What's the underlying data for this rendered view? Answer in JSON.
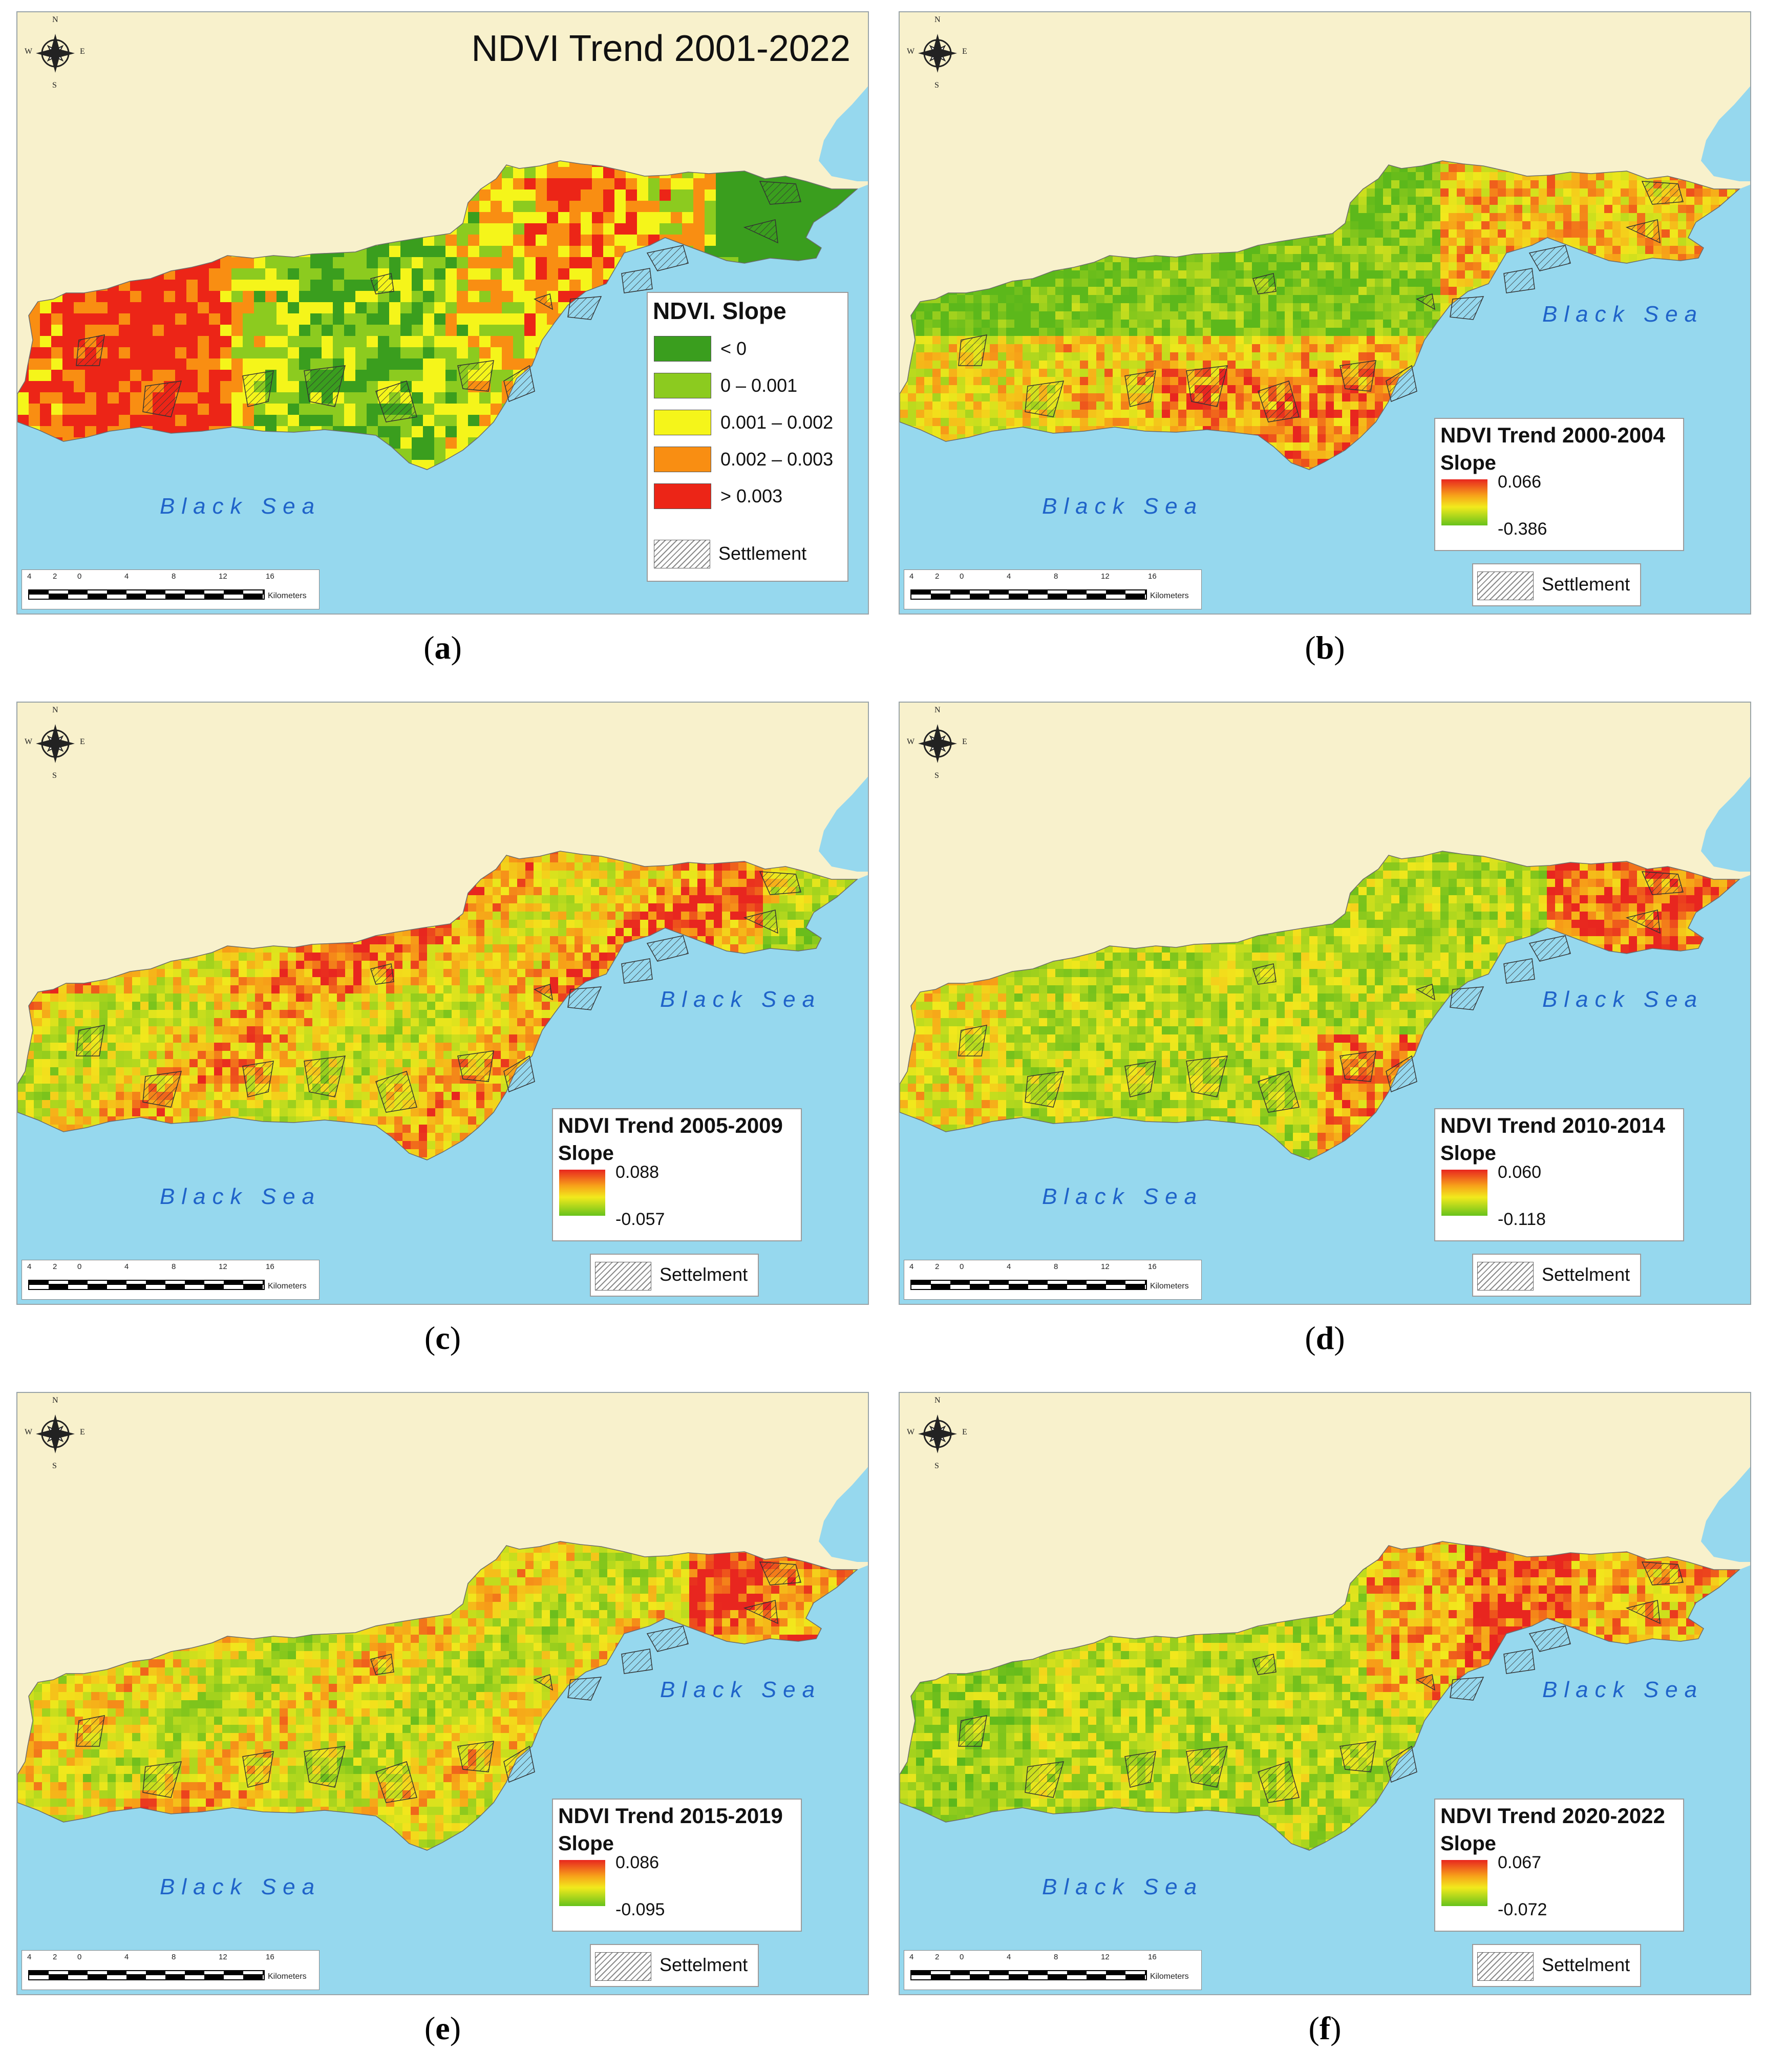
{
  "sea_label": "Black Sea",
  "settlement_label": "Settlement",
  "settlement_label_alt": "Settelment",
  "colors": {
    "sea": "#96d8ee",
    "land": "#f8f1cc",
    "strong_green": "#3a9e1e",
    "light_green": "#8ccb1f",
    "yellow": "#f2ee18",
    "orange": "#f98e12",
    "red": "#ec2517"
  },
  "scalebar": {
    "ticks": [
      "4",
      "2",
      "0",
      "4",
      "8",
      "12",
      "16"
    ],
    "unit": "Kilometers"
  },
  "compass": {
    "n": "N",
    "s": "S",
    "e": "E",
    "w": "W"
  },
  "panels": [
    {
      "id": "a",
      "caption": "a",
      "title": "NDVI Trend 2001-2022",
      "legend_title": "NDVI. Slope",
      "classes": [
        {
          "label": "< 0",
          "color": "#3a9e1e"
        },
        {
          "label": "0 – 0.001",
          "color": "#8ccb1f"
        },
        {
          "label": "0.001 – 0.002",
          "color": "#f5f51a"
        },
        {
          "label": "0.002 – 0.003",
          "color": "#f98e12"
        },
        {
          "label": "> 0.003",
          "color": "#ec2517"
        }
      ]
    },
    {
      "id": "b",
      "caption": "b",
      "legend_title": "NDVI Trend 2000-2004",
      "slope_label": "Slope",
      "max": "0.066",
      "min": "-0.386"
    },
    {
      "id": "c",
      "caption": "c",
      "legend_title": "NDVI Trend 2005-2009",
      "slope_label": "Slope",
      "max": "0.088",
      "min": "-0.057"
    },
    {
      "id": "d",
      "caption": "d",
      "legend_title": "NDVI Trend 2010-2014",
      "slope_label": "Slope",
      "max": "0.060",
      "min": "-0.118"
    },
    {
      "id": "e",
      "caption": "e",
      "legend_title": "NDVI Trend 2015-2019",
      "slope_label": "Slope",
      "max": "0.086",
      "min": "-0.095"
    },
    {
      "id": "f",
      "caption": "f",
      "legend_title": "NDVI Trend 2020-2022",
      "slope_label": "Slope",
      "max": "0.067",
      "min": "-0.072"
    }
  ]
}
